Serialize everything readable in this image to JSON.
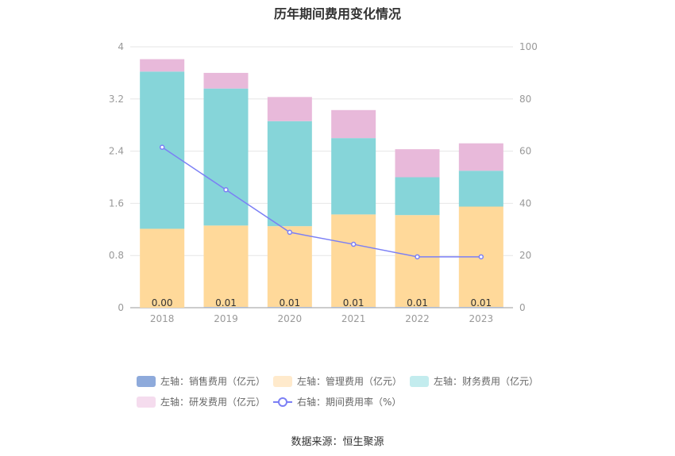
{
  "title": "历年期间费用变化情况",
  "source": "数据来源：恒生聚源",
  "chart_data": {
    "type": "bar",
    "stacked": true,
    "categories": [
      "2018",
      "2019",
      "2020",
      "2021",
      "2022",
      "2023"
    ],
    "left_axis": {
      "min": 0,
      "max": 4,
      "ticks": [
        "0",
        "0.8",
        "1.6",
        "2.4",
        "3.2",
        "4"
      ]
    },
    "right_axis": {
      "min": 0,
      "max": 100,
      "ticks": [
        "0",
        "20",
        "40",
        "60",
        "80",
        "100"
      ]
    },
    "grid": true,
    "legend_position": "bottom",
    "series": [
      {
        "name": "左轴：销售费用（亿元）",
        "type": "bar",
        "axis": "left",
        "color": "#8eaadb",
        "values": [
          0.0,
          0.01,
          0.01,
          0.01,
          0.01,
          0.01
        ],
        "labels": [
          "0.00",
          "0.01",
          "0.01",
          "0.01",
          "0.01",
          "0.01"
        ]
      },
      {
        "name": "左轴：管理费用（亿元）",
        "type": "bar",
        "axis": "left",
        "color": "#ffd99a",
        "values": [
          1.21,
          1.25,
          1.24,
          1.42,
          1.41,
          1.54
        ]
      },
      {
        "name": "左轴：财务费用（亿元）",
        "type": "bar",
        "axis": "left",
        "color": "#86d5d9",
        "values": [
          2.41,
          2.1,
          1.61,
          1.17,
          0.58,
          0.55
        ]
      },
      {
        "name": "左轴：研发费用（亿元）",
        "type": "bar",
        "axis": "left",
        "color": "#e8b9da",
        "values": [
          0.19,
          0.24,
          0.37,
          0.43,
          0.43,
          0.42
        ]
      },
      {
        "name": "右轴：期间费用率（%）",
        "type": "line",
        "axis": "right",
        "color": "#7b7ff5",
        "values": [
          61.5,
          45.2,
          28.9,
          24.3,
          19.5,
          19.5
        ]
      }
    ]
  },
  "legend": {
    "swatch_colors": [
      "#8eaadb",
      "#ffeacc",
      "#c3ecee",
      "#f5dcee",
      "#7b7ff5"
    ]
  }
}
